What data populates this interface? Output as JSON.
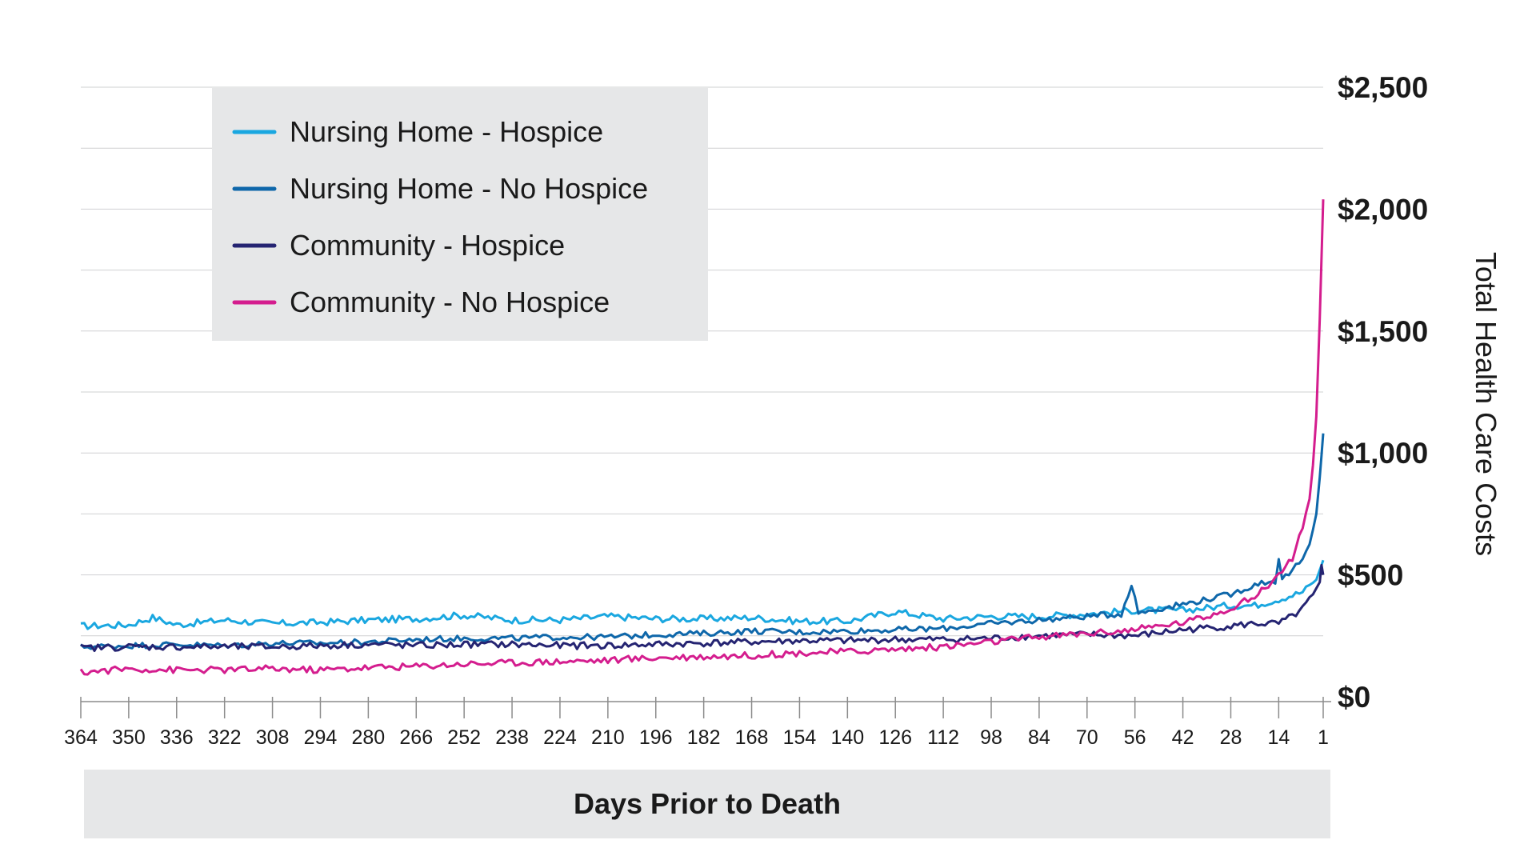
{
  "chart_data": {
    "type": "line",
    "title": "",
    "xlabel": "Days Prior to Death",
    "ylabel": "Total Health Care Costs",
    "x_tick_labels": [
      "364",
      "350",
      "336",
      "322",
      "308",
      "294",
      "280",
      "266",
      "252",
      "238",
      "224",
      "210",
      "196",
      "182",
      "168",
      "154",
      "140",
      "126",
      "112",
      "98",
      "84",
      "70",
      "56",
      "42",
      "28",
      "14",
      "1"
    ],
    "x_range": [
      364,
      1
    ],
    "y_ticks": [
      0,
      500,
      1000,
      1500,
      2000,
      2500
    ],
    "y_tick_labels": [
      "$0",
      "$500",
      "$1,000",
      "$1,500",
      "$2,000",
      "$2,500"
    ],
    "ylim": [
      0,
      2500
    ],
    "grid": "horizontal lines every 250",
    "legend_position": "top-left",
    "series": [
      {
        "name": "Nursing Home - Hospice",
        "color": "#1aa7e0",
        "points": [
          [
            364,
            290
          ],
          [
            350,
            295
          ],
          [
            343,
            325
          ],
          [
            336,
            295
          ],
          [
            322,
            315
          ],
          [
            308,
            300
          ],
          [
            294,
            305
          ],
          [
            280,
            315
          ],
          [
            266,
            320
          ],
          [
            252,
            335
          ],
          [
            238,
            315
          ],
          [
            224,
            315
          ],
          [
            210,
            330
          ],
          [
            196,
            320
          ],
          [
            182,
            320
          ],
          [
            168,
            325
          ],
          [
            154,
            310
          ],
          [
            140,
            310
          ],
          [
            126,
            350
          ],
          [
            112,
            320
          ],
          [
            98,
            330
          ],
          [
            84,
            330
          ],
          [
            70,
            340
          ],
          [
            56,
            355
          ],
          [
            42,
            355
          ],
          [
            28,
            375
          ],
          [
            21,
            375
          ],
          [
            14,
            400
          ],
          [
            7,
            430
          ],
          [
            3,
            480
          ],
          [
            1,
            560
          ]
        ]
      },
      {
        "name": "Nursing Home - No Hospice",
        "color": "#0e67aa",
        "points": [
          [
            364,
            205
          ],
          [
            350,
            210
          ],
          [
            336,
            215
          ],
          [
            322,
            210
          ],
          [
            308,
            220
          ],
          [
            294,
            220
          ],
          [
            280,
            225
          ],
          [
            266,
            235
          ],
          [
            252,
            240
          ],
          [
            238,
            240
          ],
          [
            224,
            245
          ],
          [
            210,
            245
          ],
          [
            196,
            255
          ],
          [
            182,
            260
          ],
          [
            168,
            270
          ],
          [
            154,
            265
          ],
          [
            140,
            270
          ],
          [
            126,
            275
          ],
          [
            112,
            280
          ],
          [
            98,
            300
          ],
          [
            84,
            315
          ],
          [
            70,
            330
          ],
          [
            60,
            340
          ],
          [
            57,
            460
          ],
          [
            55,
            345
          ],
          [
            42,
            380
          ],
          [
            35,
            400
          ],
          [
            28,
            420
          ],
          [
            20,
            465
          ],
          [
            15,
            475
          ],
          [
            14,
            570
          ],
          [
            13,
            480
          ],
          [
            10,
            520
          ],
          [
            7,
            560
          ],
          [
            5,
            620
          ],
          [
            3,
            750
          ],
          [
            2,
            900
          ],
          [
            1,
            1080
          ]
        ]
      },
      {
        "name": "Community - Hospice",
        "color": "#252472",
        "points": [
          [
            364,
            200
          ],
          [
            350,
            205
          ],
          [
            336,
            205
          ],
          [
            322,
            205
          ],
          [
            308,
            205
          ],
          [
            294,
            210
          ],
          [
            280,
            215
          ],
          [
            266,
            210
          ],
          [
            252,
            215
          ],
          [
            238,
            215
          ],
          [
            224,
            210
          ],
          [
            210,
            210
          ],
          [
            196,
            215
          ],
          [
            182,
            220
          ],
          [
            168,
            225
          ],
          [
            154,
            230
          ],
          [
            140,
            230
          ],
          [
            126,
            235
          ],
          [
            112,
            235
          ],
          [
            98,
            240
          ],
          [
            84,
            250
          ],
          [
            70,
            255
          ],
          [
            56,
            250
          ],
          [
            42,
            275
          ],
          [
            28,
            290
          ],
          [
            21,
            300
          ],
          [
            14,
            300
          ],
          [
            10,
            330
          ],
          [
            7,
            360
          ],
          [
            4,
            420
          ],
          [
            2,
            470
          ],
          [
            1.5,
            540
          ],
          [
            1,
            500
          ]
        ]
      },
      {
        "name": "Community - No Hospice",
        "color": "#d41d8e",
        "points": [
          [
            364,
            100
          ],
          [
            350,
            115
          ],
          [
            336,
            110
          ],
          [
            322,
            110
          ],
          [
            308,
            115
          ],
          [
            294,
            110
          ],
          [
            280,
            120
          ],
          [
            266,
            125
          ],
          [
            252,
            135
          ],
          [
            238,
            140
          ],
          [
            224,
            145
          ],
          [
            210,
            150
          ],
          [
            196,
            160
          ],
          [
            182,
            165
          ],
          [
            168,
            170
          ],
          [
            154,
            180
          ],
          [
            140,
            185
          ],
          [
            126,
            195
          ],
          [
            112,
            205
          ],
          [
            98,
            225
          ],
          [
            84,
            245
          ],
          [
            70,
            260
          ],
          [
            56,
            275
          ],
          [
            42,
            305
          ],
          [
            35,
            330
          ],
          [
            28,
            365
          ],
          [
            21,
            410
          ],
          [
            14,
            500
          ],
          [
            10,
            570
          ],
          [
            7,
            700
          ],
          [
            5,
            800
          ],
          [
            4,
            950
          ],
          [
            3,
            1150
          ],
          [
            2,
            1550
          ],
          [
            1.5,
            1800
          ],
          [
            1,
            2040
          ]
        ]
      }
    ]
  }
}
